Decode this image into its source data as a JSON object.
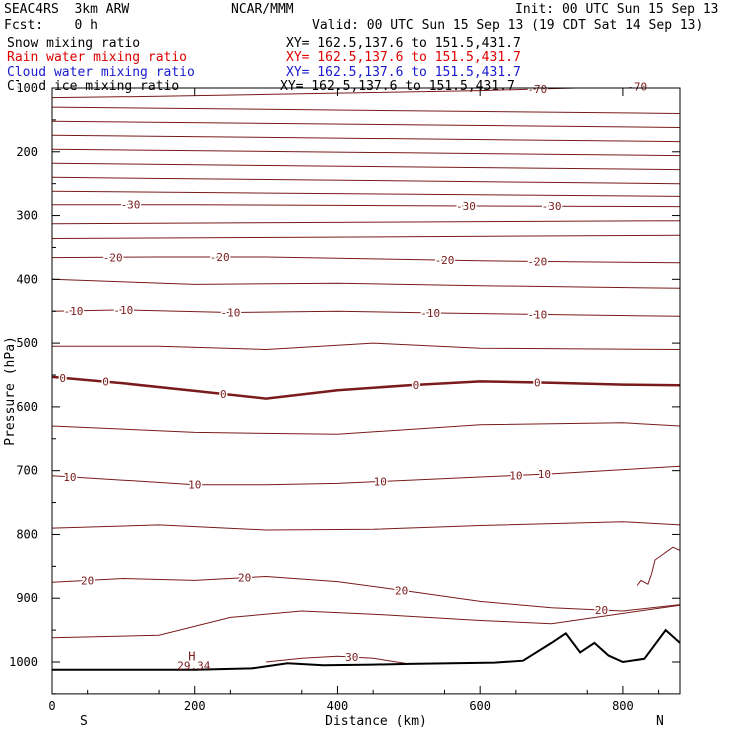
{
  "header": {
    "model": "SEAC4RS  3km ARW",
    "org": "NCAR/MMM",
    "init": "Init: 00 UTC Sun 15 Sep 13",
    "fcst": "Fcst:    0 h",
    "valid": "Valid: 00 UTC Sun 15 Sep 13 (19 CDT Sat 14 Sep 13)"
  },
  "fields": [
    {
      "name": "Snow mixing ratio",
      "xy": "XY= 162.5,137.6 to 151.5,431.7",
      "color": "#000000"
    },
    {
      "name": "Rain water mixing ratio",
      "xy": "XY= 162.5,137.6 to 151.5,431.7",
      "color": "#e00000"
    },
    {
      "name": "Cloud water mixing ratio",
      "xy": "XY= 162.5,137.6 to 151.5,431.7",
      "color": "#1a1ad0"
    },
    {
      "name": "Cloud ice mixing ratio",
      "xy": "XY= 162.5,137.6 to 151.5,431.7",
      "color": "#000000"
    }
  ],
  "chart_data": {
    "type": "line",
    "title": "",
    "xlabel": "Distance (km)",
    "ylabel": "Pressure (hPa)",
    "xlim": [
      0,
      880
    ],
    "ylim": [
      1050,
      100
    ],
    "x_ticks": [
      0,
      200,
      400,
      600,
      800
    ],
    "y_ticks": [
      100,
      200,
      300,
      400,
      500,
      600,
      700,
      800,
      900,
      1000
    ],
    "x_end_labels": {
      "left": "S",
      "right": "N"
    },
    "contour_color": "#7a1a1a",
    "terrain_color": "#000000",
    "isotherms": [
      {
        "value": -70,
        "points": [
          [
            0,
            115
          ],
          [
            150,
            113
          ],
          [
            300,
            110
          ],
          [
            450,
            107
          ],
          [
            600,
            104
          ],
          [
            700,
            101
          ],
          [
            880,
            96
          ]
        ],
        "labels": [
          {
            "text": "-70",
            "x": 680
          },
          {
            "text": "-70",
            "x": 820
          }
        ]
      },
      {
        "value": -30,
        "points": [
          [
            0,
            283
          ],
          [
            200,
            283
          ],
          [
            400,
            284
          ],
          [
            600,
            285
          ],
          [
            880,
            286
          ]
        ],
        "labels": [
          {
            "text": "-30",
            "x": 110
          },
          {
            "text": "-30",
            "x": 580
          },
          {
            "text": "-30",
            "x": 700
          }
        ]
      },
      {
        "value": -20,
        "points": [
          [
            0,
            366
          ],
          [
            150,
            365
          ],
          [
            300,
            365
          ],
          [
            450,
            368
          ],
          [
            600,
            371
          ],
          [
            880,
            374
          ]
        ],
        "labels": [
          {
            "text": "-20",
            "x": 85
          },
          {
            "text": "-20",
            "x": 235
          },
          {
            "text": "-20",
            "x": 550
          },
          {
            "text": "-20",
            "x": 680
          }
        ]
      },
      {
        "value": -10,
        "points": [
          [
            0,
            450
          ],
          [
            100,
            448
          ],
          [
            250,
            452
          ],
          [
            400,
            450
          ],
          [
            550,
            453
          ],
          [
            880,
            458
          ]
        ],
        "labels": [
          {
            "text": "-10",
            "x": 30
          },
          {
            "text": "-10",
            "x": 100
          },
          {
            "text": "-10",
            "x": 250
          },
          {
            "text": "-10",
            "x": 530
          },
          {
            "text": "-10",
            "x": 680
          }
        ]
      },
      {
        "value": 0,
        "points": [
          [
            0,
            553
          ],
          [
            100,
            563
          ],
          [
            200,
            575
          ],
          [
            300,
            587
          ],
          [
            400,
            574
          ],
          [
            500,
            566
          ],
          [
            600,
            560
          ],
          [
            700,
            562
          ],
          [
            800,
            565
          ],
          [
            880,
            566
          ]
        ],
        "labels": [
          {
            "text": "0",
            "x": 15
          },
          {
            "text": "0",
            "x": 75
          },
          {
            "text": "0",
            "x": 240
          },
          {
            "text": "0",
            "x": 510
          },
          {
            "text": "0",
            "x": 680
          }
        ],
        "bold": true
      },
      {
        "value": 10,
        "points": [
          [
            0,
            708
          ],
          [
            100,
            715
          ],
          [
            200,
            722
          ],
          [
            300,
            722
          ],
          [
            400,
            720
          ],
          [
            500,
            715
          ],
          [
            600,
            710
          ],
          [
            700,
            705
          ],
          [
            880,
            693
          ]
        ],
        "labels": [
          {
            "text": "10",
            "x": 25
          },
          {
            "text": "10",
            "x": 200
          },
          {
            "text": "10",
            "x": 460
          },
          {
            "text": "10",
            "x": 650
          },
          {
            "text": "10",
            "x": 690
          }
        ]
      },
      {
        "value": 20,
        "points": [
          [
            0,
            875
          ],
          [
            100,
            869
          ],
          [
            200,
            872
          ],
          [
            300,
            866
          ],
          [
            400,
            874
          ],
          [
            500,
            889
          ],
          [
            600,
            905
          ],
          [
            700,
            915
          ],
          [
            800,
            920
          ],
          [
            880,
            910
          ]
        ],
        "labels": [
          {
            "text": "20",
            "x": 50
          },
          {
            "text": "20",
            "x": 270
          },
          {
            "text": "20",
            "x": 490
          },
          {
            "text": "20",
            "x": 770
          }
        ]
      },
      {
        "value": 30,
        "points": [
          [
            300,
            1000
          ],
          [
            350,
            994
          ],
          [
            400,
            991
          ],
          [
            450,
            994
          ],
          [
            500,
            1003
          ]
        ],
        "labels": [
          {
            "text": "30",
            "x": 420
          }
        ]
      }
    ],
    "unlabeled_contours": [
      [
        [
          0,
          130
        ],
        [
          880,
          140
        ]
      ],
      [
        [
          0,
          152
        ],
        [
          880,
          162
        ]
      ],
      [
        [
          0,
          174
        ],
        [
          880,
          184
        ]
      ],
      [
        [
          0,
          196
        ],
        [
          880,
          206
        ]
      ],
      [
        [
          0,
          218
        ],
        [
          880,
          228
        ]
      ],
      [
        [
          0,
          240
        ],
        [
          880,
          250
        ]
      ],
      [
        [
          0,
          262
        ],
        [
          880,
          270
        ]
      ],
      [
        [
          0,
          313
        ],
        [
          880,
          308
        ]
      ],
      [
        [
          0,
          336
        ],
        [
          880,
          331
        ]
      ],
      [
        [
          0,
          400
        ],
        [
          200,
          408
        ],
        [
          400,
          406
        ],
        [
          600,
          410
        ],
        [
          880,
          414
        ]
      ],
      [
        [
          0,
          505
        ],
        [
          150,
          505
        ],
        [
          300,
          510
        ],
        [
          450,
          500
        ],
        [
          600,
          508
        ],
        [
          880,
          510
        ]
      ],
      [
        [
          0,
          630
        ],
        [
          200,
          640
        ],
        [
          400,
          643
        ],
        [
          600,
          628
        ],
        [
          800,
          625
        ],
        [
          880,
          630
        ]
      ],
      [
        [
          0,
          790
        ],
        [
          150,
          785
        ],
        [
          300,
          793
        ],
        [
          450,
          792
        ],
        [
          600,
          786
        ],
        [
          800,
          780
        ],
        [
          880,
          785
        ]
      ],
      [
        [
          0,
          962
        ],
        [
          150,
          958
        ],
        [
          250,
          930
        ],
        [
          350,
          920
        ],
        [
          450,
          925
        ],
        [
          600,
          935
        ],
        [
          700,
          940
        ],
        [
          880,
          911
        ]
      ]
    ],
    "extremum": {
      "label": "H",
      "value": "29.34",
      "x": 210
    },
    "terrain": [
      [
        0,
        1012
      ],
      [
        100,
        1012
      ],
      [
        200,
        1012
      ],
      [
        280,
        1010
      ],
      [
        330,
        1002
      ],
      [
        380,
        1005
      ],
      [
        450,
        1004
      ],
      [
        500,
        1003
      ],
      [
        560,
        1002
      ],
      [
        620,
        1001
      ],
      [
        660,
        998
      ],
      [
        700,
        970
      ],
      [
        720,
        955
      ],
      [
        740,
        985
      ],
      [
        760,
        970
      ],
      [
        780,
        990
      ],
      [
        800,
        1000
      ],
      [
        830,
        995
      ],
      [
        860,
        950
      ],
      [
        880,
        970
      ]
    ],
    "side_curve": [
      [
        820,
        880
      ],
      [
        825,
        872
      ],
      [
        835,
        878
      ],
      [
        840,
        862
      ],
      [
        845,
        840
      ],
      [
        870,
        820
      ],
      [
        880,
        825
      ]
    ]
  }
}
